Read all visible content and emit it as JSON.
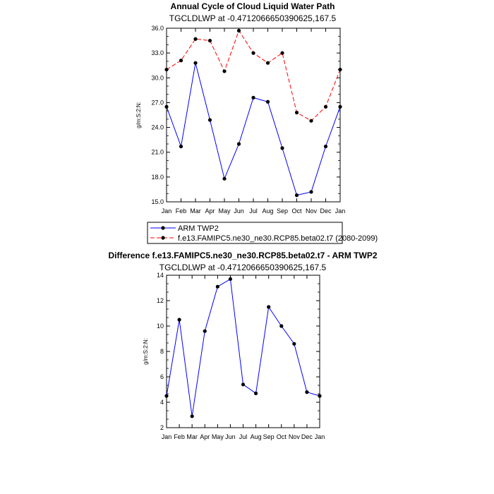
{
  "chart_data": [
    {
      "type": "line",
      "title": "Annual Cycle of Cloud Liquid Water Path",
      "subtitle": "TGCLDLWP at -0.4712066650390625,167.5",
      "ylabel": "g/m:S:2:N:",
      "xlabel": "",
      "categories": [
        "Jan",
        "Feb",
        "Mar",
        "Apr",
        "May",
        "Jun",
        "Jul",
        "Aug",
        "Sep",
        "Oct",
        "Nov",
        "Dec",
        "Jan"
      ],
      "ylim": [
        15.0,
        36.0
      ],
      "yticks": [
        "15.0",
        "18.0",
        "21.0",
        "24.0",
        "27.0",
        "30.0",
        "33.0",
        "36.0"
      ],
      "grid": false,
      "legend_position": "bottom",
      "series": [
        {
          "name": "ARM TWP2",
          "color": "#0000ff",
          "dash": "solid",
          "values": [
            26.5,
            21.7,
            31.8,
            24.9,
            17.8,
            22.0,
            27.6,
            27.1,
            21.5,
            15.8,
            16.2,
            21.7,
            26.5
          ]
        },
        {
          "name": "f.e13.FAMIPC5.ne30_ne30.RCP85.beta02.t7 (2080-2099)",
          "color": "#ff0000",
          "dash": "dashed",
          "values": [
            31.0,
            32.1,
            34.7,
            34.5,
            30.8,
            35.7,
            33.0,
            31.8,
            33.0,
            25.8,
            24.8,
            26.5,
            31.0
          ]
        }
      ]
    },
    {
      "type": "line",
      "title": "Difference f.e13.FAMIPC5.ne30_ne30.RCP85.beta02.t7 - ARM TWP2",
      "subtitle": "TGCLDLWP at -0.4712066650390625,167.5",
      "ylabel": "g/m:S:2:N:",
      "xlabel": "",
      "categories": [
        "Jan",
        "Feb",
        "Mar",
        "Apr",
        "May",
        "Jun",
        "Jul",
        "Aug",
        "Sep",
        "Oct",
        "Nov",
        "Dec",
        "Jan"
      ],
      "ylim": [
        2,
        14
      ],
      "yticks": [
        "2",
        "4",
        "6",
        "8",
        "10",
        "12",
        "14"
      ],
      "grid": false,
      "series": [
        {
          "color": "#0000ff",
          "dash": "solid",
          "values": [
            4.5,
            10.5,
            2.9,
            9.6,
            13.1,
            13.7,
            5.4,
            4.7,
            11.5,
            10.0,
            8.6,
            4.8,
            4.5
          ]
        }
      ]
    }
  ]
}
